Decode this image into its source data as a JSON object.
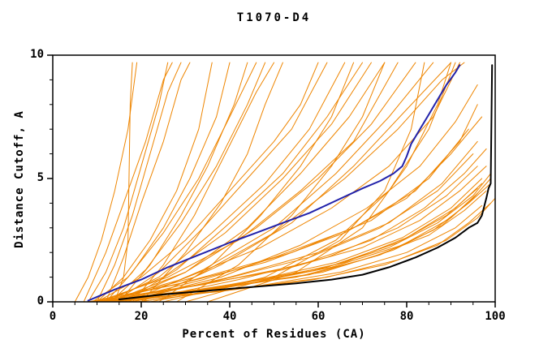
{
  "chart_data": {
    "type": "line",
    "title": "T1070-D4",
    "xlabel": "Percent of Residues (CA)",
    "ylabel": "Distance Cutoff, A",
    "xlim": [
      0,
      100
    ],
    "ylim": [
      0,
      10
    ],
    "x_ticks": [
      0,
      20,
      40,
      60,
      80,
      100
    ],
    "y_ticks": [
      0,
      5,
      10
    ],
    "x_minor_step": 5,
    "y_minor_step": 1,
    "grid": false,
    "legend": "none",
    "colors": {
      "ensemble": "#EE8500",
      "blue_model": "#2222AA",
      "black_model": "#000000",
      "axis": "#000000",
      "background": "#FFFFFF"
    },
    "highlights": [
      {
        "name": "blue-model",
        "color_key": "blue_model",
        "width": 2,
        "points": [
          [
            8,
            0.05
          ],
          [
            14,
            0.5
          ],
          [
            20,
            0.9
          ],
          [
            26,
            1.4
          ],
          [
            33,
            1.9
          ],
          [
            40,
            2.4
          ],
          [
            46,
            2.8
          ],
          [
            52,
            3.2
          ],
          [
            58,
            3.6
          ],
          [
            64,
            4.1
          ],
          [
            70,
            4.6
          ],
          [
            74,
            4.9
          ],
          [
            77,
            5.2
          ],
          [
            79,
            5.5
          ],
          [
            80,
            5.9
          ],
          [
            81,
            6.4
          ],
          [
            83,
            7.0
          ],
          [
            85,
            7.6
          ],
          [
            87,
            8.2
          ],
          [
            89,
            8.8
          ],
          [
            91,
            9.3
          ],
          [
            92,
            9.6
          ]
        ]
      },
      {
        "name": "black-model",
        "color_key": "black_model",
        "width": 2,
        "points": [
          [
            15,
            0.1
          ],
          [
            25,
            0.3
          ],
          [
            35,
            0.45
          ],
          [
            45,
            0.6
          ],
          [
            55,
            0.75
          ],
          [
            63,
            0.9
          ],
          [
            70,
            1.1
          ],
          [
            76,
            1.4
          ],
          [
            82,
            1.8
          ],
          [
            87,
            2.2
          ],
          [
            91,
            2.6
          ],
          [
            94,
            3.0
          ],
          [
            96,
            3.2
          ],
          [
            97,
            3.5
          ],
          [
            98,
            4.2
          ],
          [
            98.5,
            4.6
          ],
          [
            99,
            4.8
          ],
          [
            99.3,
            9.6
          ]
        ]
      }
    ],
    "ensemble": [
      [
        [
          5,
          0
        ],
        [
          8,
          1
        ],
        [
          11,
          2.5
        ],
        [
          14,
          4.5
        ],
        [
          17,
          7
        ],
        [
          19,
          9.7
        ]
      ],
      [
        [
          8,
          0
        ],
        [
          12,
          1.2
        ],
        [
          16,
          3
        ],
        [
          20,
          5.5
        ],
        [
          24,
          8
        ],
        [
          26,
          9.7
        ]
      ],
      [
        [
          10,
          0
        ],
        [
          14,
          1.5
        ],
        [
          18,
          3.5
        ],
        [
          22,
          6
        ],
        [
          26,
          8.5
        ],
        [
          29,
          9.7
        ]
      ],
      [
        [
          7,
          0
        ],
        [
          12,
          2
        ],
        [
          16,
          4
        ],
        [
          21,
          6.5
        ],
        [
          25,
          9
        ],
        [
          27,
          9.7
        ]
      ],
      [
        [
          12,
          0
        ],
        [
          16,
          1.8
        ],
        [
          20,
          4
        ],
        [
          25,
          6.5
        ],
        [
          29,
          9
        ],
        [
          31,
          9.7
        ]
      ],
      [
        [
          14,
          0
        ],
        [
          16,
          1
        ],
        [
          17,
          2.5
        ],
        [
          17.5,
          8
        ],
        [
          18,
          9.7
        ]
      ],
      [
        [
          10,
          0
        ],
        [
          16,
          1
        ],
        [
          22,
          2.5
        ],
        [
          28,
          4.5
        ],
        [
          33,
          7
        ],
        [
          36,
          9.7
        ]
      ],
      [
        [
          12,
          0
        ],
        [
          18,
          1.2
        ],
        [
          25,
          3
        ],
        [
          31,
          5
        ],
        [
          37,
          7.5
        ],
        [
          40,
          9.7
        ]
      ],
      [
        [
          15,
          0
        ],
        [
          22,
          1.5
        ],
        [
          29,
          3.5
        ],
        [
          35,
          5.5
        ],
        [
          41,
          8
        ],
        [
          44,
          9.7
        ]
      ],
      [
        [
          9,
          0
        ],
        [
          17,
          1
        ],
        [
          25,
          2.8
        ],
        [
          33,
          5
        ],
        [
          40,
          7.5
        ],
        [
          46,
          9.7
        ]
      ],
      [
        [
          13,
          0
        ],
        [
          21,
          1.3
        ],
        [
          29,
          3.2
        ],
        [
          37,
          5.5
        ],
        [
          44,
          8
        ],
        [
          48,
          9.7
        ]
      ],
      [
        [
          18,
          0
        ],
        [
          25,
          1.5
        ],
        [
          32,
          3.5
        ],
        [
          39,
          6
        ],
        [
          46,
          8.5
        ],
        [
          50,
          9.7
        ]
      ],
      [
        [
          10,
          0
        ],
        [
          20,
          1
        ],
        [
          30,
          2.5
        ],
        [
          40,
          4.5
        ],
        [
          50,
          6.5
        ],
        [
          56,
          8
        ],
        [
          60,
          9.7
        ]
      ],
      [
        [
          14,
          0
        ],
        [
          24,
          1.2
        ],
        [
          34,
          3
        ],
        [
          44,
          5
        ],
        [
          54,
          7
        ],
        [
          62,
          9.7
        ]
      ],
      [
        [
          12,
          0
        ],
        [
          24,
          1
        ],
        [
          36,
          2.8
        ],
        [
          48,
          4.8
        ],
        [
          58,
          7
        ],
        [
          66,
          9.7
        ]
      ],
      [
        [
          16,
          0
        ],
        [
          28,
          1.3
        ],
        [
          40,
          3.2
        ],
        [
          52,
          5.2
        ],
        [
          62,
          7.5
        ],
        [
          70,
          9.7
        ]
      ],
      [
        [
          11,
          0
        ],
        [
          25,
          1
        ],
        [
          39,
          2.8
        ],
        [
          52,
          5
        ],
        [
          63,
          7.2
        ],
        [
          72,
          9.7
        ]
      ],
      [
        [
          15,
          0
        ],
        [
          30,
          1.2
        ],
        [
          44,
          3
        ],
        [
          56,
          5.2
        ],
        [
          67,
          7.5
        ],
        [
          75,
          9.7
        ]
      ],
      [
        [
          10,
          0
        ],
        [
          26,
          1
        ],
        [
          42,
          2.5
        ],
        [
          56,
          4.5
        ],
        [
          68,
          6.5
        ],
        [
          78,
          9.7
        ]
      ],
      [
        [
          13,
          0
        ],
        [
          30,
          1.2
        ],
        [
          46,
          3
        ],
        [
          60,
          5
        ],
        [
          72,
          7.2
        ],
        [
          82,
          9.7
        ]
      ],
      [
        [
          17,
          0
        ],
        [
          34,
          1.3
        ],
        [
          50,
          3
        ],
        [
          64,
          5.2
        ],
        [
          76,
          7.5
        ],
        [
          86,
          9.7
        ]
      ],
      [
        [
          20,
          0
        ],
        [
          38,
          1.5
        ],
        [
          54,
          3.2
        ],
        [
          68,
          5.5
        ],
        [
          80,
          7.8
        ],
        [
          90,
          9.7
        ]
      ],
      [
        [
          12,
          0
        ],
        [
          32,
          1
        ],
        [
          50,
          2.8
        ],
        [
          66,
          5
        ],
        [
          78,
          7
        ],
        [
          88,
          9
        ],
        [
          93,
          9.7
        ]
      ],
      [
        [
          10,
          0
        ],
        [
          30,
          0.8
        ],
        [
          50,
          1.8
        ],
        [
          68,
          3
        ],
        [
          82,
          4.5
        ],
        [
          92,
          6.5
        ],
        [
          96,
          8
        ]
      ],
      [
        [
          14,
          0
        ],
        [
          34,
          0.9
        ],
        [
          54,
          2
        ],
        [
          72,
          3.3
        ],
        [
          85,
          5
        ],
        [
          94,
          7
        ]
      ],
      [
        [
          8,
          0
        ],
        [
          28,
          0.7
        ],
        [
          48,
          1.6
        ],
        [
          66,
          2.8
        ],
        [
          80,
          4.2
        ],
        [
          90,
          6
        ],
        [
          97,
          7.5
        ]
      ],
      [
        [
          12,
          0
        ],
        [
          36,
          0.8
        ],
        [
          58,
          1.8
        ],
        [
          74,
          3
        ],
        [
          87,
          4.5
        ],
        [
          95,
          6
        ]
      ],
      [
        [
          16,
          0
        ],
        [
          40,
          1
        ],
        [
          60,
          2
        ],
        [
          76,
          3.2
        ],
        [
          88,
          4.8
        ],
        [
          96,
          6.5
        ]
      ],
      [
        [
          10,
          0
        ],
        [
          34,
          0.7
        ],
        [
          56,
          1.5
        ],
        [
          72,
          2.5
        ],
        [
          84,
          3.8
        ],
        [
          93,
          5.2
        ],
        [
          98,
          6.2
        ]
      ],
      [
        [
          18,
          0
        ],
        [
          42,
          0.9
        ],
        [
          62,
          1.8
        ],
        [
          78,
          3
        ],
        [
          89,
          4.3
        ],
        [
          96,
          5.5
        ]
      ],
      [
        [
          8,
          0
        ],
        [
          30,
          0.6
        ],
        [
          52,
          1.3
        ],
        [
          70,
          2.2
        ],
        [
          83,
          3.3
        ],
        [
          92,
          4.5
        ],
        [
          98,
          5.5
        ]
      ],
      [
        [
          20,
          0
        ],
        [
          44,
          0.8
        ],
        [
          64,
          1.6
        ],
        [
          79,
          2.6
        ],
        [
          90,
          3.8
        ],
        [
          97,
          5
        ]
      ],
      [
        [
          12,
          0
        ],
        [
          38,
          0.6
        ],
        [
          60,
          1.3
        ],
        [
          76,
          2.2
        ],
        [
          87,
          3.2
        ],
        [
          95,
          4.3
        ],
        [
          99,
          5.2
        ]
      ],
      [
        [
          15,
          0
        ],
        [
          40,
          0.7
        ],
        [
          62,
          1.4
        ],
        [
          78,
          2.4
        ],
        [
          89,
          3.5
        ],
        [
          96,
          4.6
        ]
      ],
      [
        [
          10,
          0
        ],
        [
          36,
          0.5
        ],
        [
          58,
          1.1
        ],
        [
          74,
          1.9
        ],
        [
          86,
          2.9
        ],
        [
          94,
          4
        ],
        [
          99,
          4.8
        ]
      ],
      [
        [
          22,
          0
        ],
        [
          46,
          0.8
        ],
        [
          66,
          1.6
        ],
        [
          80,
          2.6
        ],
        [
          91,
          3.8
        ],
        [
          97,
          4.8
        ]
      ],
      [
        [
          13,
          0
        ],
        [
          39,
          0.6
        ],
        [
          61,
          1.2
        ],
        [
          77,
          2.1
        ],
        [
          88,
          3.1
        ],
        [
          95,
          4.2
        ],
        [
          99,
          5
        ]
      ],
      [
        [
          17,
          0
        ],
        [
          43,
          0.7
        ],
        [
          63,
          1.4
        ],
        [
          79,
          2.3
        ],
        [
          90,
          3.4
        ],
        [
          96,
          4.4
        ]
      ],
      [
        [
          9,
          0
        ],
        [
          33,
          0.5
        ],
        [
          55,
          1
        ],
        [
          72,
          1.8
        ],
        [
          85,
          2.7
        ],
        [
          93,
          3.7
        ],
        [
          98,
          4.5
        ]
      ],
      [
        [
          11,
          0
        ],
        [
          37,
          0.4
        ],
        [
          59,
          0.9
        ],
        [
          75,
          1.5
        ],
        [
          87,
          2.3
        ],
        [
          94,
          3.2
        ],
        [
          99,
          4
        ]
      ],
      [
        [
          19,
          0
        ],
        [
          45,
          0.6
        ],
        [
          65,
          1.2
        ],
        [
          80,
          2
        ],
        [
          91,
          3
        ],
        [
          97,
          3.9
        ]
      ],
      [
        [
          14,
          0
        ],
        [
          41,
          0.5
        ],
        [
          62,
          1
        ],
        [
          78,
          1.7
        ],
        [
          89,
          2.5
        ],
        [
          96,
          3.4
        ],
        [
          100,
          4.2
        ]
      ],
      [
        [
          30,
          0
        ],
        [
          50,
          1
        ],
        [
          65,
          2.5
        ],
        [
          75,
          4.5
        ],
        [
          81,
          7
        ],
        [
          84,
          9.7
        ]
      ],
      [
        [
          35,
          0
        ],
        [
          55,
          1.2
        ],
        [
          70,
          3
        ],
        [
          80,
          5.5
        ],
        [
          87,
          8
        ],
        [
          90,
          9.7
        ]
      ],
      [
        [
          25,
          0
        ],
        [
          48,
          1
        ],
        [
          64,
          2.5
        ],
        [
          76,
          4.5
        ],
        [
          85,
          7
        ],
        [
          91,
          9.7
        ]
      ],
      [
        [
          20,
          0
        ],
        [
          30,
          2
        ],
        [
          38,
          4
        ],
        [
          44,
          6
        ],
        [
          48,
          8
        ],
        [
          52,
          9.7
        ]
      ],
      [
        [
          24,
          0
        ],
        [
          36,
          1.5
        ],
        [
          47,
          3.5
        ],
        [
          56,
          5.5
        ],
        [
          63,
          7.5
        ],
        [
          68,
          9.7
        ]
      ],
      [
        [
          28,
          0
        ],
        [
          42,
          1.5
        ],
        [
          54,
          3.5
        ],
        [
          63,
          5.5
        ],
        [
          70,
          7.5
        ],
        [
          75,
          9.7
        ]
      ],
      [
        [
          11,
          0
        ],
        [
          29,
          0.9
        ],
        [
          47,
          2.2
        ],
        [
          63,
          3.8
        ],
        [
          76,
          5.5
        ],
        [
          86,
          7.5
        ],
        [
          92,
          9.7
        ]
      ],
      [
        [
          16,
          0
        ],
        [
          38,
          1
        ],
        [
          56,
          2.3
        ],
        [
          71,
          3.8
        ],
        [
          83,
          5.5
        ],
        [
          91,
          7.3
        ],
        [
          96,
          8.8
        ]
      ]
    ]
  }
}
